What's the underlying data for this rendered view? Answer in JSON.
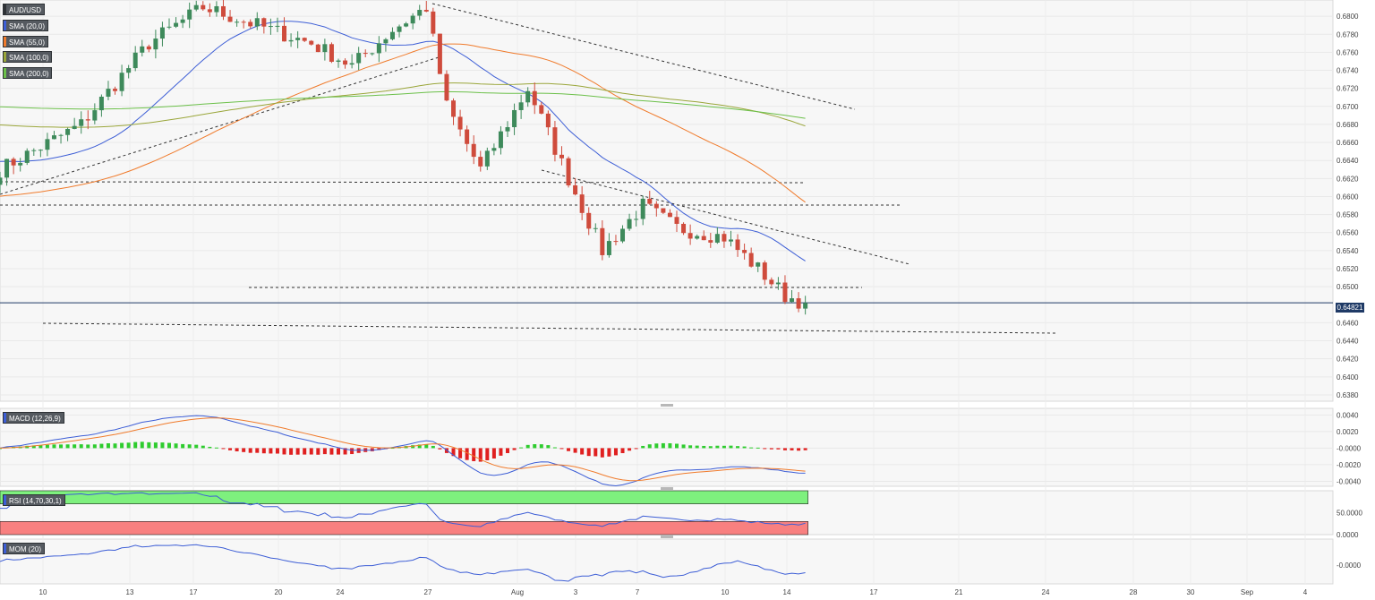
{
  "legends": {
    "symbol": "AUD/USD",
    "sma20": "SMA (20,0)",
    "sma55": "SMA (55,0)",
    "sma100": "SMA (100,0)",
    "sma200": "SMA (200,0)",
    "macd": "MACD (12,26,9)",
    "rsi": "RSI (14,70,30,1)",
    "mom": "MOM (20)"
  },
  "colors": {
    "bull": "#3e8a5b",
    "bear": "#cf4b3c",
    "sma20": "#3d5ed6",
    "sma55": "#f07b2c",
    "sma100": "#9aa63a",
    "sma200": "#6cc04a",
    "macd_line": "#3d5ed6",
    "signal_line": "#f07b2c",
    "hist_pos": "#2ecc2e",
    "hist_neg": "#e02020",
    "rsi_line": "#3d5ed6",
    "rsi_over": "#7ef07e",
    "rsi_under": "#f88080",
    "mom_line": "#3d5ed6",
    "current": "#1f3a66"
  },
  "current_price": "0.64821",
  "chart_data": {
    "type": "candlestick",
    "symbol": "AUD/USD",
    "x_ticks": [
      "10",
      "13",
      "17",
      "20",
      "24",
      "27",
      "Aug",
      "3",
      "7",
      "10",
      "14",
      "17",
      "21",
      "24",
      "28",
      "30",
      "Sep",
      "4"
    ],
    "price_ticks": [
      "0.6800",
      "0.6780",
      "0.6760",
      "0.6740",
      "0.6720",
      "0.6700",
      "0.6680",
      "0.6660",
      "0.6640",
      "0.6620",
      "0.6600",
      "0.6580",
      "0.6560",
      "0.6540",
      "0.6520",
      "0.6500",
      "0.6460",
      "0.6440",
      "0.6420",
      "0.6400",
      "0.6380"
    ],
    "price_range": [
      0.6373,
      0.6818
    ],
    "macd_ticks": [
      "0.0040",
      "0.0020",
      "-0.0000",
      "-0.0020",
      "-0.0040"
    ],
    "macd_range": [
      -0.0046,
      0.0048
    ],
    "rsi_ticks": [
      "50.0000",
      "0.0000"
    ],
    "mom_ticks": [
      "-0.0000"
    ],
    "key_points": [
      {
        "x": 0,
        "close": 0.663
      },
      {
        "x": 12,
        "close": 0.668
      },
      {
        "x": 22,
        "close": 0.677
      },
      {
        "x": 30,
        "close": 0.681
      },
      {
        "x": 38,
        "close": 0.679
      },
      {
        "x": 46,
        "close": 0.677
      },
      {
        "x": 52,
        "close": 0.6745
      },
      {
        "x": 58,
        "close": 0.6785
      },
      {
        "x": 63,
        "close": 0.681
      },
      {
        "x": 66,
        "close": 0.67
      },
      {
        "x": 71,
        "close": 0.663
      },
      {
        "x": 78,
        "close": 0.672
      },
      {
        "x": 84,
        "close": 0.662
      },
      {
        "x": 89,
        "close": 0.654
      },
      {
        "x": 95,
        "close": 0.659
      },
      {
        "x": 100,
        "close": 0.6565
      },
      {
        "x": 107,
        "close": 0.6555
      },
      {
        "x": 112,
        "close": 0.652
      },
      {
        "x": 116,
        "close": 0.649
      },
      {
        "x": 119,
        "close": 0.6482
      }
    ]
  }
}
